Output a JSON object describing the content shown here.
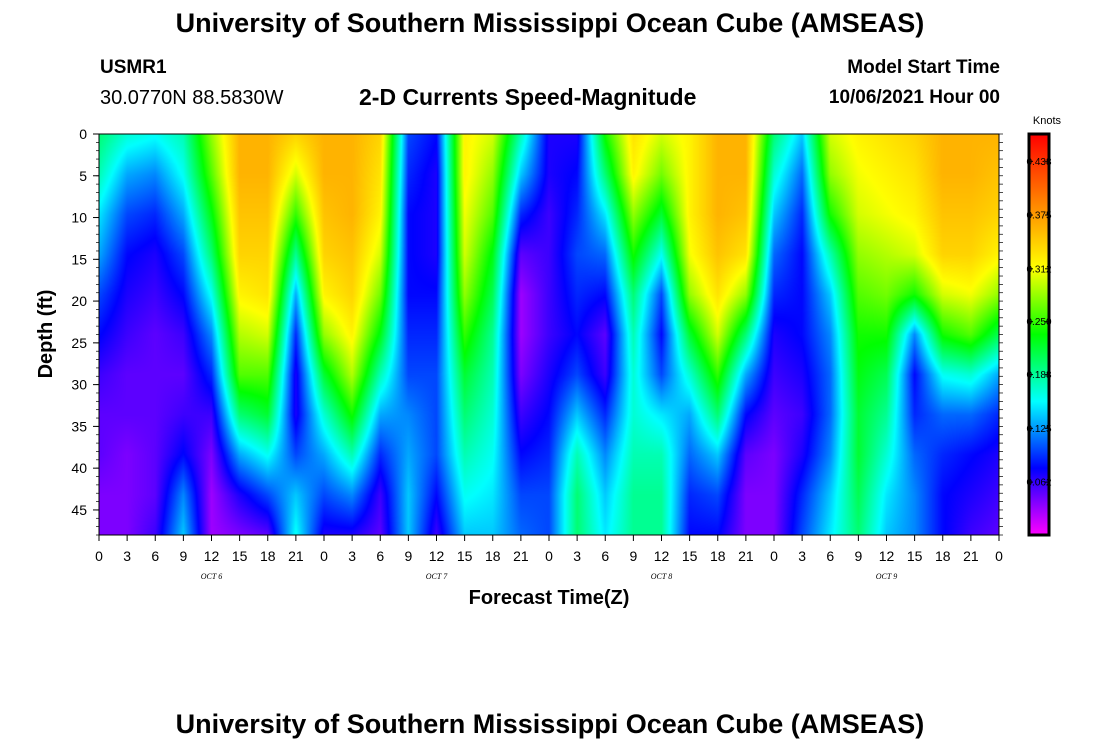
{
  "page": {
    "title": "University of Southern Mississippi Ocean Cube (AMSEAS)",
    "footer_title": "University of Southern Mississippi Ocean Cube (AMSEAS)",
    "station": "USMR1",
    "coords": "30.0770N  88.5830W",
    "subtitle": "2-D Currents Speed-Magnitude",
    "model_start_label": "Model Start Time",
    "model_start_value": "10/06/2021 Hour 00"
  },
  "chart_data": {
    "type": "heatmap",
    "title": "2-D Currents Speed-Magnitude",
    "xlabel": "Forecast Time(Z)",
    "ylabel": "Depth (ft)",
    "x_tick_labels": [
      "0",
      "3",
      "6",
      "9",
      "12",
      "15",
      "18",
      "21",
      "0",
      "3",
      "6",
      "9",
      "12",
      "15",
      "18",
      "21",
      "0",
      "3",
      "6",
      "9",
      "12",
      "15",
      "18",
      "21",
      "0",
      "3",
      "6",
      "9",
      "12",
      "15",
      "18",
      "21",
      "0"
    ],
    "day_labels": [
      "OCT 6",
      "OCT 7",
      "OCT 8",
      "OCT 9"
    ],
    "x_range_hours": [
      0,
      96
    ],
    "y_tick_labels": [
      "0",
      "5",
      "10",
      "15",
      "20",
      "25",
      "30",
      "35",
      "40",
      "45"
    ],
    "y_range_ft": [
      0,
      48
    ],
    "colorbar": {
      "unit": "Knots",
      "tick_labels": [
        "0.438",
        "0.375",
        "0.312",
        "0.250",
        "0.188",
        "0.125",
        "0.062"
      ],
      "range": [
        0,
        0.47
      ],
      "colors": [
        "#ff00ff",
        "#0000ff",
        "#00ffff",
        "#00ff00",
        "#ffff00",
        "#ff8000",
        "#ff0000"
      ]
    },
    "speed_profile_columns": [
      {
        "hour": 0,
        "values": [
          0.2,
          0.18,
          0.15,
          0.13,
          0.1,
          0.08,
          0.06,
          0.05,
          0.05,
          0.04,
          0.04
        ]
      },
      {
        "hour": 3,
        "values": [
          0.17,
          0.13,
          0.1,
          0.08,
          0.07,
          0.06,
          0.05,
          0.05,
          0.04,
          0.04,
          0.04
        ]
      },
      {
        "hour": 6,
        "values": [
          0.16,
          0.12,
          0.09,
          0.07,
          0.06,
          0.05,
          0.05,
          0.05,
          0.05,
          0.05,
          0.06
        ]
      },
      {
        "hour": 9,
        "values": [
          0.18,
          0.16,
          0.13,
          0.1,
          0.08,
          0.06,
          0.05,
          0.06,
          0.08,
          0.12,
          0.14
        ]
      },
      {
        "hour": 12,
        "values": [
          0.28,
          0.26,
          0.23,
          0.2,
          0.16,
          0.12,
          0.09,
          0.06,
          0.04,
          0.03,
          0.03
        ]
      },
      {
        "hour": 15,
        "values": [
          0.36,
          0.36,
          0.35,
          0.34,
          0.32,
          0.29,
          0.26,
          0.2,
          0.13,
          0.07,
          0.04
        ]
      },
      {
        "hour": 18,
        "values": [
          0.36,
          0.36,
          0.35,
          0.34,
          0.33,
          0.3,
          0.26,
          0.22,
          0.16,
          0.1,
          0.05
        ]
      },
      {
        "hour": 21,
        "values": [
          0.34,
          0.3,
          0.25,
          0.19,
          0.13,
          0.09,
          0.07,
          0.07,
          0.1,
          0.14,
          0.16
        ]
      },
      {
        "hour": 24,
        "values": [
          0.36,
          0.36,
          0.35,
          0.34,
          0.32,
          0.28,
          0.22,
          0.17,
          0.13,
          0.1,
          0.07
        ]
      },
      {
        "hour": 27,
        "values": [
          0.36,
          0.36,
          0.36,
          0.35,
          0.34,
          0.32,
          0.29,
          0.24,
          0.18,
          0.12,
          0.07
        ]
      },
      {
        "hour": 30,
        "values": [
          0.34,
          0.33,
          0.32,
          0.3,
          0.27,
          0.23,
          0.18,
          0.13,
          0.09,
          0.06,
          0.05
        ]
      },
      {
        "hour": 33,
        "values": [
          0.1,
          0.09,
          0.08,
          0.08,
          0.08,
          0.09,
          0.1,
          0.12,
          0.13,
          0.14,
          0.14
        ]
      },
      {
        "hour": 36,
        "values": [
          0.08,
          0.07,
          0.07,
          0.07,
          0.08,
          0.09,
          0.1,
          0.1,
          0.1,
          0.08,
          0.06
        ]
      },
      {
        "hour": 39,
        "values": [
          0.32,
          0.32,
          0.31,
          0.3,
          0.28,
          0.25,
          0.22,
          0.2,
          0.18,
          0.16,
          0.14
        ]
      },
      {
        "hour": 42,
        "values": [
          0.3,
          0.28,
          0.26,
          0.23,
          0.21,
          0.19,
          0.18,
          0.17,
          0.16,
          0.15,
          0.14
        ]
      },
      {
        "hour": 45,
        "values": [
          0.18,
          0.14,
          0.09,
          0.05,
          0.03,
          0.03,
          0.04,
          0.06,
          0.08,
          0.1,
          0.11
        ]
      },
      {
        "hour": 48,
        "values": [
          0.07,
          0.07,
          0.06,
          0.06,
          0.06,
          0.06,
          0.07,
          0.08,
          0.09,
          0.1,
          0.1
        ]
      },
      {
        "hour": 51,
        "values": [
          0.07,
          0.08,
          0.09,
          0.1,
          0.09,
          0.08,
          0.1,
          0.14,
          0.18,
          0.2,
          0.2
        ]
      },
      {
        "hour": 54,
        "values": [
          0.24,
          0.2,
          0.15,
          0.11,
          0.08,
          0.05,
          0.06,
          0.09,
          0.12,
          0.14,
          0.15
        ]
      },
      {
        "hour": 57,
        "values": [
          0.33,
          0.32,
          0.28,
          0.24,
          0.2,
          0.18,
          0.17,
          0.17,
          0.18,
          0.19,
          0.19
        ]
      },
      {
        "hour": 60,
        "values": [
          0.3,
          0.27,
          0.22,
          0.16,
          0.1,
          0.08,
          0.1,
          0.15,
          0.18,
          0.19,
          0.19
        ]
      },
      {
        "hour": 63,
        "values": [
          0.32,
          0.32,
          0.32,
          0.31,
          0.28,
          0.22,
          0.17,
          0.13,
          0.11,
          0.09,
          0.08
        ]
      },
      {
        "hour": 66,
        "values": [
          0.36,
          0.36,
          0.36,
          0.35,
          0.33,
          0.3,
          0.25,
          0.2,
          0.14,
          0.1,
          0.08
        ]
      },
      {
        "hour": 69,
        "values": [
          0.36,
          0.36,
          0.35,
          0.33,
          0.28,
          0.2,
          0.13,
          0.08,
          0.05,
          0.04,
          0.04
        ]
      },
      {
        "hour": 72,
        "values": [
          0.2,
          0.17,
          0.14,
          0.11,
          0.09,
          0.07,
          0.06,
          0.05,
          0.04,
          0.04,
          0.04
        ]
      },
      {
        "hour": 75,
        "values": [
          0.14,
          0.11,
          0.09,
          0.08,
          0.08,
          0.08,
          0.07,
          0.06,
          0.07,
          0.09,
          0.1
        ]
      },
      {
        "hour": 78,
        "values": [
          0.3,
          0.28,
          0.24,
          0.18,
          0.14,
          0.12,
          0.11,
          0.11,
          0.12,
          0.14,
          0.15
        ]
      },
      {
        "hour": 81,
        "values": [
          0.32,
          0.31,
          0.3,
          0.28,
          0.26,
          0.24,
          0.23,
          0.22,
          0.22,
          0.21,
          0.2
        ]
      },
      {
        "hour": 84,
        "values": [
          0.33,
          0.32,
          0.31,
          0.29,
          0.27,
          0.24,
          0.21,
          0.19,
          0.17,
          0.15,
          0.14
        ]
      },
      {
        "hour": 87,
        "values": [
          0.34,
          0.33,
          0.32,
          0.3,
          0.24,
          0.12,
          0.08,
          0.09,
          0.11,
          0.12,
          0.12
        ]
      },
      {
        "hour": 90,
        "values": [
          0.36,
          0.36,
          0.35,
          0.34,
          0.3,
          0.24,
          0.16,
          0.11,
          0.09,
          0.08,
          0.08
        ]
      },
      {
        "hour": 93,
        "values": [
          0.36,
          0.36,
          0.35,
          0.34,
          0.31,
          0.26,
          0.17,
          0.11,
          0.08,
          0.07,
          0.06
        ]
      },
      {
        "hour": 96,
        "values": [
          0.36,
          0.35,
          0.34,
          0.32,
          0.28,
          0.21,
          0.13,
          0.09,
          0.07,
          0.06,
          0.05
        ]
      }
    ]
  }
}
